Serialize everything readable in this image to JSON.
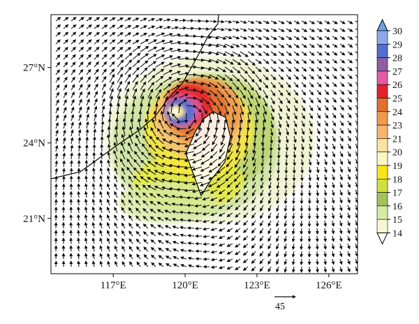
{
  "figure": {
    "lat_ticks": [
      {
        "lat": 27,
        "label": "27°N"
      },
      {
        "lat": 24,
        "label": "24°N"
      },
      {
        "lat": 21,
        "label": "21°N"
      }
    ],
    "lon_ticks": [
      {
        "lon": 117,
        "label": "117°E"
      },
      {
        "lon": 120,
        "label": "120°E"
      },
      {
        "lon": 123,
        "label": "123°E"
      },
      {
        "lon": 126,
        "label": "126°E"
      }
    ],
    "lon_range": [
      114.4,
      127.2
    ],
    "lat_range": [
      18.8,
      29.1
    ],
    "reference_vector": {
      "value": 45,
      "label": "45"
    },
    "colorbar": {
      "levels": [
        "14",
        "15",
        "16",
        "17",
        "18",
        "19",
        "20",
        "21",
        "23",
        "24",
        "25",
        "26",
        "27",
        "28",
        "29",
        "30"
      ],
      "colors": [
        "#ffffff",
        "#f6f7d2",
        "#d8e8a6",
        "#9fc45c",
        "#cfe13b",
        "#fbe51a",
        "#fdf8c0",
        "#fde2a3",
        "#f7b56c",
        "#ef9a4d",
        "#e0712e",
        "#e4222c",
        "#e55aa0",
        "#8e5da5",
        "#4f6fd2",
        "#8fa6e8",
        "#6ea2e6"
      ],
      "extend": "both"
    },
    "field": {
      "type": "filled contours of wind speed with wind vectors",
      "cyclone_center": {
        "lon": 120.0,
        "lat": 25.2
      }
    }
  }
}
